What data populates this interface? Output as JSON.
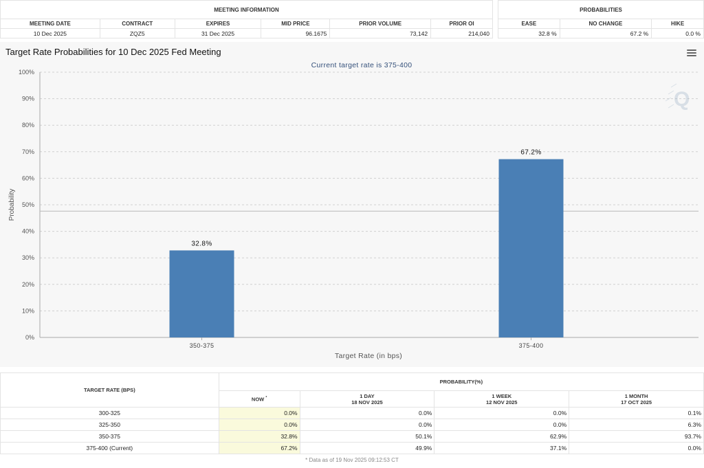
{
  "meeting_info": {
    "group_title": "MEETING INFORMATION",
    "headers": [
      "MEETING DATE",
      "CONTRACT",
      "EXPIRES",
      "MID PRICE",
      "PRIOR VOLUME",
      "PRIOR OI"
    ],
    "values": [
      "10 Dec 2025",
      "ZQZ5",
      "31 Dec 2025",
      "96.1675",
      "73,142",
      "214,040"
    ]
  },
  "probabilities": {
    "group_title": "PROBABILITIES",
    "headers": [
      "EASE",
      "NO CHANGE",
      "HIKE"
    ],
    "values": [
      "32.8 %",
      "67.2 %",
      "0.0 %"
    ]
  },
  "chart_title": "Target Rate Probabilities for 10 Dec 2025 Fed Meeting",
  "menu_icon": "hamburger-menu-icon",
  "watermark_icon": "q-logo-icon",
  "chart_data": {
    "type": "bar",
    "title": "Target Rate Probabilities for 10 Dec 2025 Fed Meeting",
    "subtitle": "Current target rate is 375-400",
    "xlabel": "Target Rate (in bps)",
    "ylabel": "Probability",
    "categories": [
      "350-375",
      "375-400"
    ],
    "values": [
      32.8,
      67.2
    ],
    "data_labels": [
      "32.8%",
      "67.2%"
    ],
    "y_ticks": [
      "0%",
      "10%",
      "20%",
      "30%",
      "40%",
      "50%",
      "60%",
      "70%",
      "80%",
      "90%",
      "100%"
    ],
    "ylim": [
      0,
      100
    ],
    "grid": true,
    "reference_line": 47.6,
    "bar_color": "#4a7fb5"
  },
  "rate_table": {
    "col_target": "TARGET RATE (BPS)",
    "group_title": "PROBABILITY(%)",
    "columns": [
      {
        "line1": "NOW",
        "sup": "*",
        "line2": ""
      },
      {
        "line1": "1 DAY",
        "line2": "18 NOV 2025"
      },
      {
        "line1": "1 WEEK",
        "line2": "12 NOV 2025"
      },
      {
        "line1": "1 MONTH",
        "line2": "17 OCT 2025"
      }
    ],
    "rows": [
      {
        "rate": "300-325",
        "now": "0.0%",
        "day": "0.0%",
        "week": "0.0%",
        "month": "0.1%"
      },
      {
        "rate": "325-350",
        "now": "0.0%",
        "day": "0.0%",
        "week": "0.0%",
        "month": "6.3%"
      },
      {
        "rate": "350-375",
        "now": "32.8%",
        "day": "50.1%",
        "week": "62.9%",
        "month": "93.7%"
      },
      {
        "rate": "375-400 (Current)",
        "now": "67.2%",
        "day": "49.9%",
        "week": "37.1%",
        "month": "0.0%"
      }
    ],
    "footnote": "* Data as of 19 Nov 2025 09:12:53 CT"
  }
}
